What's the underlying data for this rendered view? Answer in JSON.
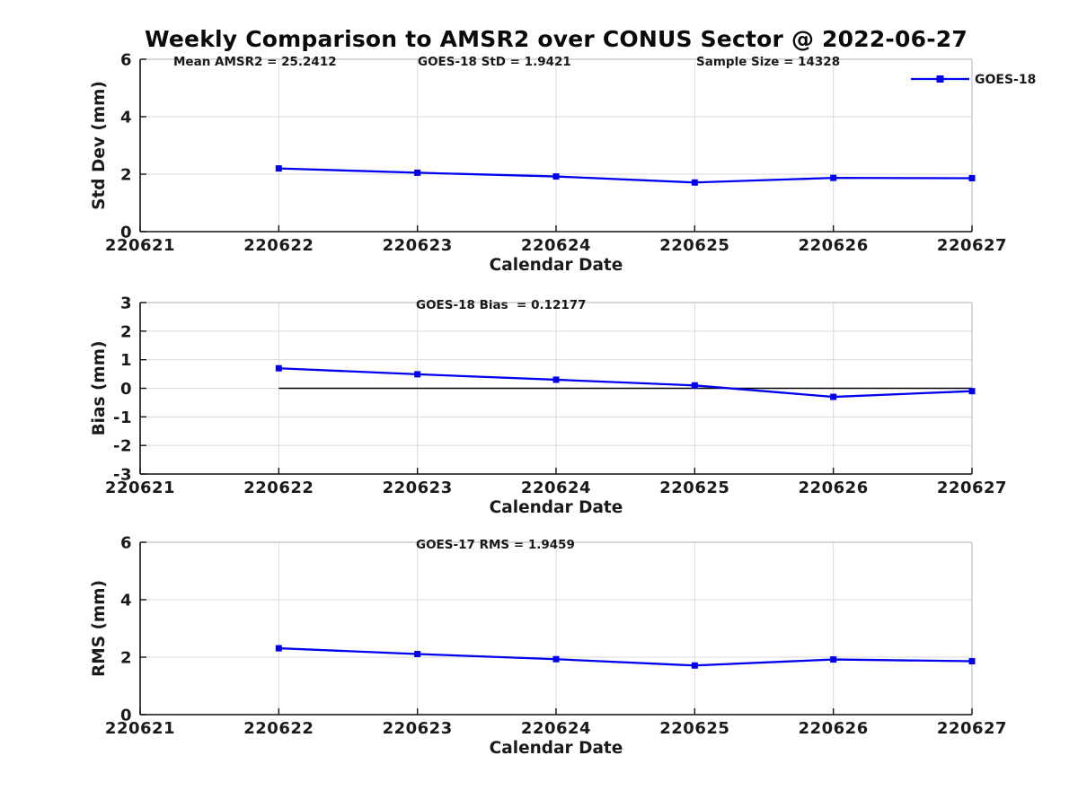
{
  "title": "Weekly Comparison to AMSR2 over CONUS Sector @ 2022-06-27",
  "colors": {
    "series_blue": "#0000ee",
    "zero_line": "#000000",
    "grid": "#dadada",
    "axis": "#111111",
    "text": "#1a1a1a"
  },
  "chart_data": [
    {
      "type": "line",
      "title": "Std Dev panel",
      "ylabel": "Std Dev (mm)",
      "xlabel": "Calendar Date",
      "ylim": [
        0,
        6
      ],
      "yticks": [
        0,
        2,
        4,
        6
      ],
      "xticks": [
        "220621",
        "220622",
        "220623",
        "220624",
        "220625",
        "220626",
        "220627"
      ],
      "grid": true,
      "annotations": [
        "Mean AMSR2 = 25.2412",
        "GOES-18 StD = 1.9421",
        "Sample Size = 14328"
      ],
      "legend": {
        "label": "GOES-18",
        "position": "top-right"
      },
      "series": [
        {
          "name": "GOES-18",
          "color": "#0000ee",
          "marker": "square",
          "x": [
            "220622",
            "220623",
            "220624",
            "220625",
            "220626",
            "220627"
          ],
          "values": [
            2.2,
            2.05,
            1.92,
            1.71,
            1.87,
            1.86
          ]
        }
      ]
    },
    {
      "type": "line",
      "title": "Bias panel",
      "ylabel": "Bias (mm)",
      "xlabel": "Calendar Date",
      "ylim": [
        -3,
        3
      ],
      "yticks": [
        -3,
        -2,
        -1,
        0,
        1,
        2,
        3
      ],
      "xticks": [
        "220621",
        "220622",
        "220623",
        "220624",
        "220625",
        "220626",
        "220627"
      ],
      "grid": true,
      "annotations": [
        "GOES-18 Bias  = 0.12177"
      ],
      "ref_line": {
        "y": 0,
        "from": "220622",
        "to": "220627",
        "color": "#000000"
      },
      "series": [
        {
          "name": "GOES-18",
          "color": "#0000ee",
          "marker": "square",
          "x": [
            "220622",
            "220623",
            "220624",
            "220625",
            "220626",
            "220627"
          ],
          "values": [
            0.7,
            0.49,
            0.3,
            0.1,
            -0.3,
            -0.1
          ]
        }
      ]
    },
    {
      "type": "line",
      "title": "RMS panel",
      "ylabel": "RMS (mm)",
      "xlabel": "Calendar Date",
      "ylim": [
        0,
        6
      ],
      "yticks": [
        0,
        2,
        4,
        6
      ],
      "xticks": [
        "220621",
        "220622",
        "220623",
        "220624",
        "220625",
        "220626",
        "220627"
      ],
      "grid": true,
      "annotations": [
        "GOES-17 RMS = 1.9459"
      ],
      "series": [
        {
          "name": "GOES-18",
          "color": "#0000ee",
          "marker": "square",
          "x": [
            "220622",
            "220623",
            "220624",
            "220625",
            "220626",
            "220627"
          ],
          "values": [
            2.31,
            2.11,
            1.93,
            1.71,
            1.92,
            1.86
          ]
        }
      ]
    }
  ]
}
